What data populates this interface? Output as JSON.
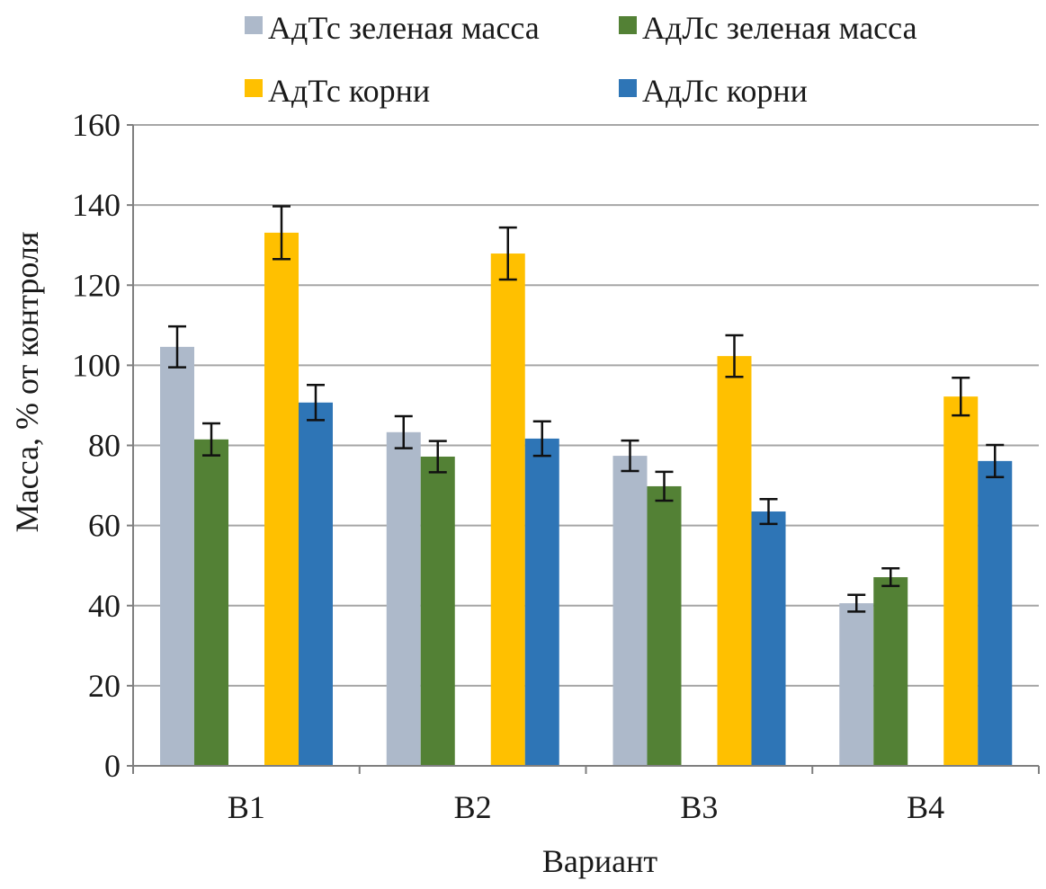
{
  "chart_data": {
    "type": "bar",
    "title": "",
    "xlabel": "Вариант",
    "ylabel": "Масса, % от контроля",
    "ylim": [
      0,
      160
    ],
    "yticks": [
      0,
      20,
      40,
      60,
      80,
      100,
      120,
      140,
      160
    ],
    "grid": true,
    "legend_position": "top",
    "categories": [
      "B1",
      "B2",
      "B3",
      "B4"
    ],
    "series": [
      {
        "name": "АдТс зеленая масса",
        "color": "#adb9ca",
        "values": [
          104.6,
          83.3,
          77.4,
          40.6
        ],
        "errors": [
          5.1,
          4.0,
          3.8,
          2.1
        ]
      },
      {
        "name": "АдЛс зеленая масса",
        "color": "#538135",
        "values": [
          81.5,
          77.2,
          69.8,
          47.1
        ],
        "errors": [
          4.0,
          3.9,
          3.6,
          2.2
        ]
      },
      {
        "name": "АдТс корни",
        "color": "#ffc000",
        "values": [
          133.1,
          127.9,
          102.3,
          92.2
        ],
        "errors": [
          6.6,
          6.5,
          5.2,
          4.7
        ]
      },
      {
        "name": "АдЛс корни",
        "color": "#2e75b6",
        "values": [
          90.7,
          81.7,
          63.5,
          76.1
        ],
        "errors": [
          4.4,
          4.3,
          3.1,
          4.0
        ]
      }
    ]
  }
}
